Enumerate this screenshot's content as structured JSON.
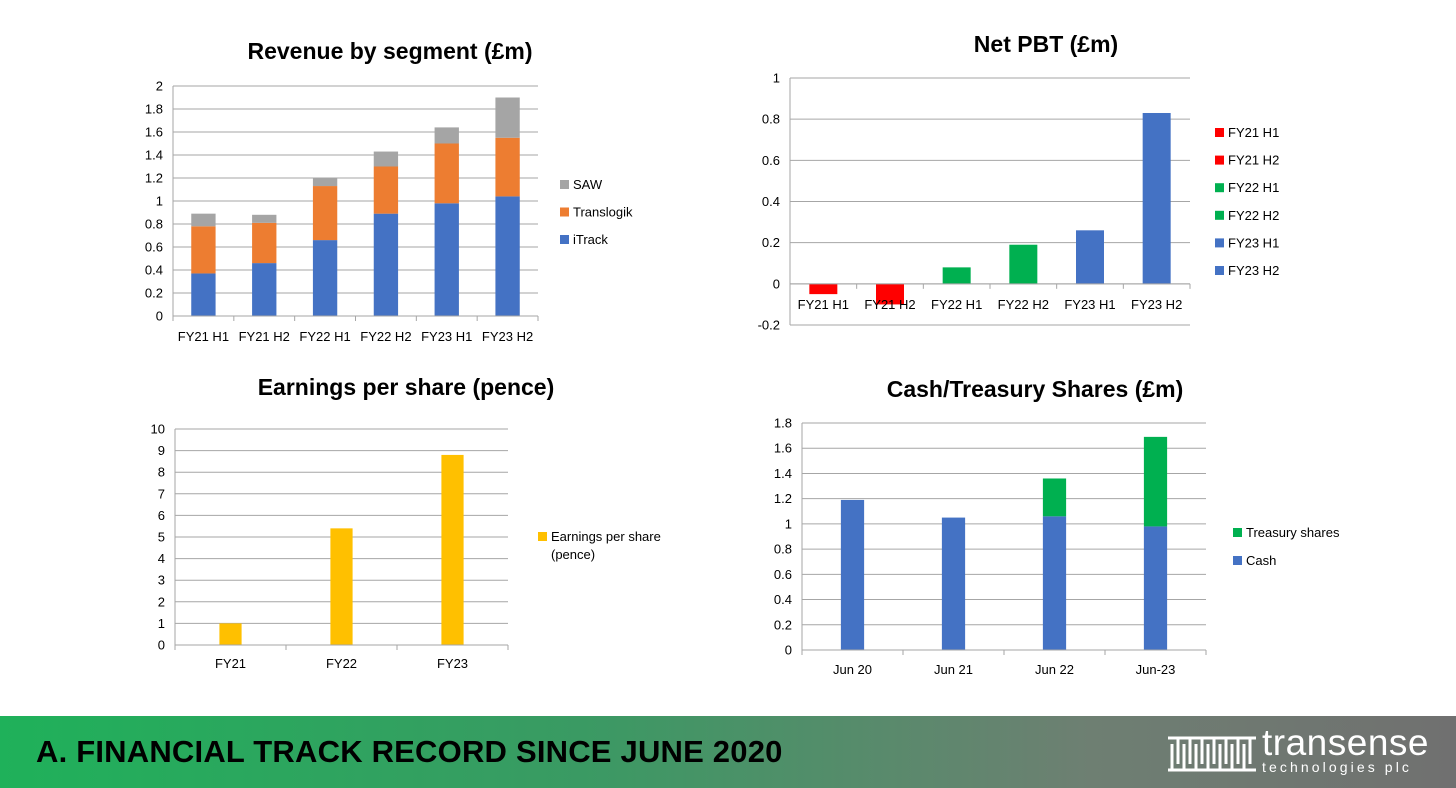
{
  "footer": {
    "title": "A. FINANCIAL TRACK RECORD SINCE JUNE 2020",
    "logo_name": "transense",
    "logo_tagline": "technologies plc",
    "logo_icon": "transense-logo-icon"
  },
  "colors": {
    "blue": "#4472C4",
    "orange": "#ED7D31",
    "gray": "#A5A5A5",
    "red": "#FF0000",
    "green": "#00B050",
    "yellow": "#FFC000"
  },
  "chart_data": [
    {
      "id": "revenue",
      "type": "bar",
      "stacked": true,
      "title": "Revenue by segment (£m)",
      "categories": [
        "FY21 H1",
        "FY21 H2",
        "FY22 H1",
        "FY22 H2",
        "FY23 H1",
        "FY23 H2"
      ],
      "series": [
        {
          "name": "iTrack",
          "color": "#4472C4",
          "values": [
            0.37,
            0.46,
            0.66,
            0.89,
            0.98,
            1.04
          ]
        },
        {
          "name": "Translogik",
          "color": "#ED7D31",
          "values": [
            0.41,
            0.35,
            0.47,
            0.41,
            0.52,
            0.51
          ]
        },
        {
          "name": "SAW",
          "color": "#A5A5A5",
          "values": [
            0.11,
            0.07,
            0.07,
            0.13,
            0.14,
            0.35
          ]
        }
      ],
      "ylim": [
        0,
        2
      ],
      "yticks": [
        "0",
        "0.2",
        "0.4",
        "0.6",
        "0.8",
        "1",
        "1.2",
        "1.4",
        "1.6",
        "1.8",
        "2"
      ],
      "grid": true,
      "legend": "right"
    },
    {
      "id": "pbt",
      "type": "bar",
      "title": "Net PBT (£m)",
      "categories": [
        "FY21 H1",
        "FY21 H2",
        "FY22 H1",
        "FY22 H2",
        "FY23 H1",
        "FY23 H2"
      ],
      "values": [
        -0.05,
        -0.1,
        0.08,
        0.19,
        0.26,
        0.83
      ],
      "bar_colors": [
        "#FF0000",
        "#FF0000",
        "#00B050",
        "#00B050",
        "#4472C4",
        "#4472C4"
      ],
      "legend_entries": [
        {
          "name": "FY21 H1",
          "color": "#FF0000"
        },
        {
          "name": "FY21 H2",
          "color": "#FF0000"
        },
        {
          "name": "FY22 H1",
          "color": "#00B050"
        },
        {
          "name": "FY22 H2",
          "color": "#00B050"
        },
        {
          "name": "FY23 H1",
          "color": "#4472C4"
        },
        {
          "name": "FY23 H2",
          "color": "#4472C4"
        }
      ],
      "ylim": [
        -0.2,
        1
      ],
      "yticks": [
        "-0.2",
        "0",
        "0.2",
        "0.4",
        "0.6",
        "0.8",
        "1"
      ],
      "grid": true,
      "legend": "right"
    },
    {
      "id": "eps",
      "type": "bar",
      "title": "Earnings per share (pence)",
      "categories": [
        "FY21",
        "FY22",
        "FY23"
      ],
      "series": [
        {
          "name": "Earnings per share (pence)",
          "legend_lines": [
            "Earnings per share",
            "(pence)"
          ],
          "color": "#FFC000",
          "values": [
            1.0,
            5.4,
            8.8
          ]
        }
      ],
      "ylim": [
        0,
        10
      ],
      "yticks": [
        "0",
        "1",
        "2",
        "3",
        "4",
        "5",
        "6",
        "7",
        "8",
        "9",
        "10"
      ],
      "grid": true,
      "legend": "right"
    },
    {
      "id": "cash",
      "type": "bar",
      "stacked": true,
      "title": "Cash/Treasury Shares (£m)",
      "categories": [
        "Jun 20",
        "Jun 21",
        "Jun 22",
        "Jun-23"
      ],
      "series": [
        {
          "name": "Cash",
          "color": "#4472C4",
          "values": [
            1.19,
            1.05,
            1.06,
            0.98
          ]
        },
        {
          "name": "Treasury shares",
          "color": "#00B050",
          "values": [
            0,
            0,
            0.3,
            0.71
          ]
        }
      ],
      "ylim": [
        0,
        1.8
      ],
      "yticks": [
        "0",
        "0.2",
        "0.4",
        "0.6",
        "0.8",
        "1",
        "1.2",
        "1.4",
        "1.6",
        "1.8"
      ],
      "grid": true,
      "legend": "right"
    }
  ]
}
